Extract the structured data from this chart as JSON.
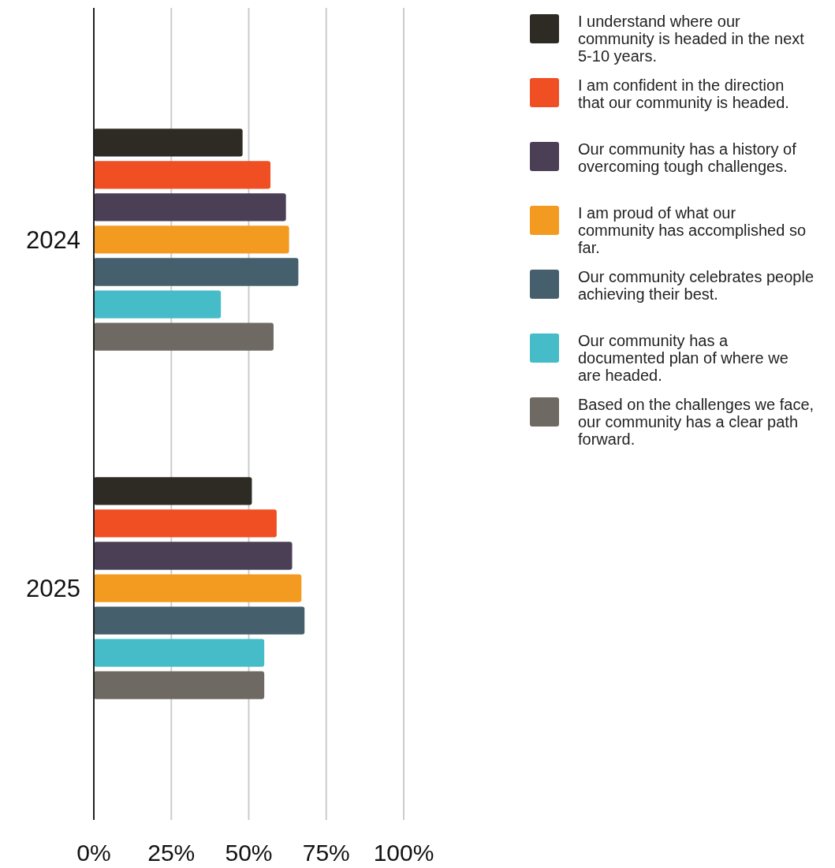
{
  "chart_data": {
    "type": "bar",
    "orientation": "horizontal",
    "categories": [
      "2024",
      "2025"
    ],
    "series": [
      {
        "name": "I understand where our community is headed in the next 5-10 years.",
        "color": "#2e2a24",
        "values": [
          48,
          51
        ]
      },
      {
        "name": "I am confident in the direction that our community is headed.",
        "color": "#f04e23",
        "values": [
          57,
          59
        ]
      },
      {
        "name": "Our community has a history of overcoming tough challenges.",
        "color": "#4a3f55",
        "values": [
          62,
          64
        ]
      },
      {
        "name": "I am proud of what our community has accomplished so far.",
        "color": "#f39a20",
        "values": [
          63,
          67
        ]
      },
      {
        "name": "Our community celebrates people achieving their best.",
        "color": "#455f6c",
        "values": [
          66,
          68
        ]
      },
      {
        "name": "Our community has a documented plan of where we are headed.",
        "color": "#45bcc8",
        "values": [
          41,
          55
        ]
      },
      {
        "name": "Based on the challenges we face, our community has a clear path forward.",
        "color": "#6e6a63",
        "values": [
          58,
          55
        ]
      }
    ],
    "xlim": [
      0,
      100
    ],
    "xticks": [
      {
        "value": 0,
        "label": "0%"
      },
      {
        "value": 25,
        "label": "25%"
      },
      {
        "value": 50,
        "label": "50%"
      },
      {
        "value": 75,
        "label": "75%"
      },
      {
        "value": 100,
        "label": "100%"
      }
    ],
    "grid": "x",
    "legend": "right"
  }
}
